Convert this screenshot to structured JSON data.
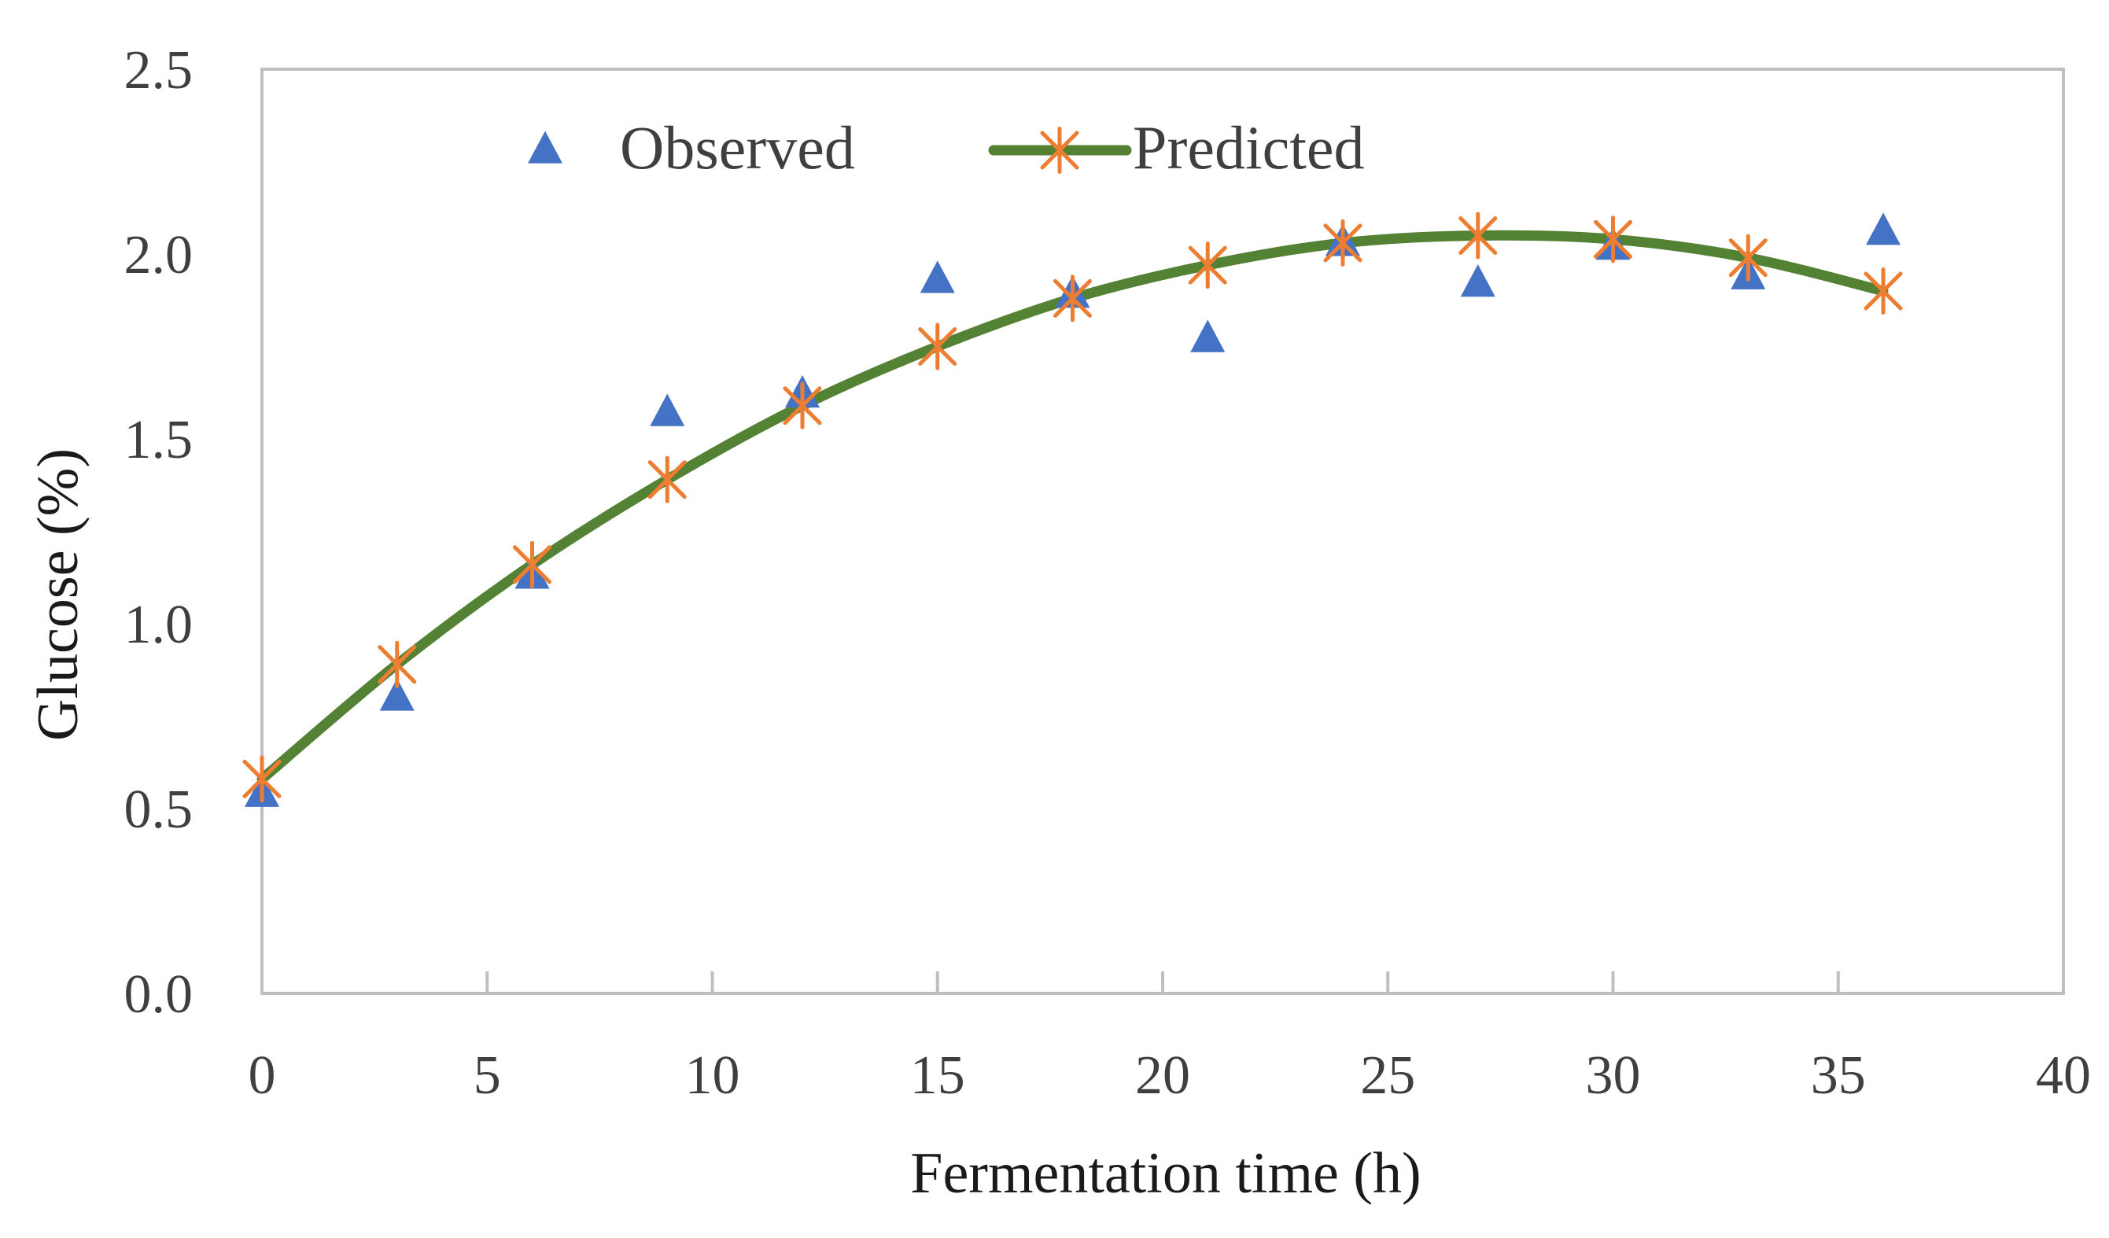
{
  "chart_data": {
    "type": "scatter",
    "title": "",
    "xlabel": "Fermentation time (h)",
    "ylabel": "Glucose (%)",
    "xlim": [
      0,
      40
    ],
    "ylim": [
      0,
      2.5
    ],
    "xticks": [
      "0",
      "5",
      "10",
      "15",
      "20",
      "25",
      "30",
      "35",
      "40"
    ],
    "yticks": [
      "0.0",
      "0.5",
      "1.0",
      "1.5",
      "2.0",
      "2.5"
    ],
    "grid": false,
    "legend_position": "top",
    "series": [
      {
        "name": "Observed",
        "kind": "scatter",
        "marker": "triangle",
        "color": "#4472c4",
        "x": [
          0,
          3,
          6,
          9,
          12,
          15,
          18,
          21,
          24,
          27,
          30,
          33,
          36
        ],
        "y": [
          0.54,
          0.8,
          1.13,
          1.57,
          1.62,
          1.93,
          1.89,
          1.77,
          2.03,
          1.92,
          2.02,
          1.94,
          2.06
        ]
      },
      {
        "name": "Predicted",
        "kind": "line",
        "marker": "asterisk",
        "line_color": "#548235",
        "marker_color": "#ed7d31",
        "x": [
          0,
          3,
          6,
          9,
          12,
          15,
          18,
          21,
          24,
          27,
          30,
          33,
          36
        ],
        "y": [
          0.58,
          0.89,
          1.16,
          1.39,
          1.59,
          1.75,
          1.88,
          1.97,
          2.03,
          2.05,
          2.04,
          1.99,
          1.9
        ]
      }
    ]
  },
  "colors": {
    "axis": "#bfbfbf",
    "frame": "#bfbfbf",
    "background": "#ffffff"
  }
}
